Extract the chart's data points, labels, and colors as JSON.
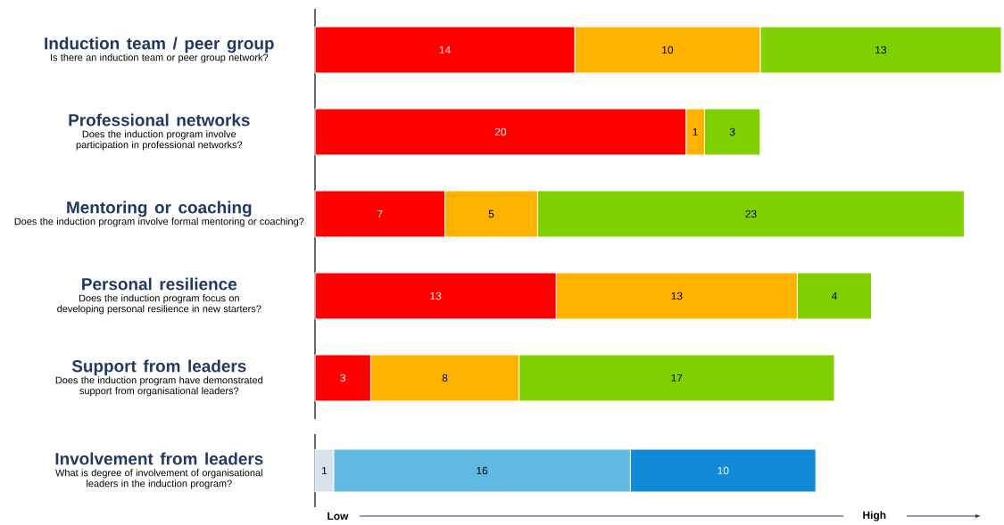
{
  "chart_data": [
    {
      "type": "bar",
      "orientation": "horizontal",
      "stacked": true,
      "data_labels": true,
      "tick_labels": "y",
      "categories": [
        "Induction team / peer group",
        "Professional networks",
        "Mentoring or coaching",
        "Personal resilience",
        "Support from leaders"
      ],
      "annotations": [
        "Is there an induction team or peer group network?",
        "Does the induction program involve participation in professional networks?",
        "Does the induction program involve formal mentoring or coaching?",
        "Does the induction program focus on developing personal resilience in new starters?",
        "Does the induction program have demonstrated support from organisational leaders?"
      ],
      "series": [
        {
          "color": "#ff0000",
          "values": [
            14,
            20,
            7,
            13,
            3
          ]
        },
        {
          "color": "#ffb300",
          "values": [
            10,
            1,
            5,
            13,
            8
          ]
        },
        {
          "color": "#80d000",
          "values": [
            13,
            3,
            23,
            4,
            17
          ]
        }
      ]
    },
    {
      "type": "bar",
      "orientation": "horizontal",
      "stacked": true,
      "data_labels": true,
      "tick_labels": "y",
      "categories": [
        "Involvement from leaders"
      ],
      "annotations": [
        "What is degree of involvement of organisational leaders in the induction program?",
        "Low",
        "High"
      ],
      "series": [
        {
          "color": "#d9e1ee",
          "values": [
            1
          ]
        },
        {
          "color": "#5fb9e0",
          "values": [
            16
          ]
        },
        {
          "color": "#138ad8",
          "values": [
            10
          ]
        }
      ]
    }
  ]
}
